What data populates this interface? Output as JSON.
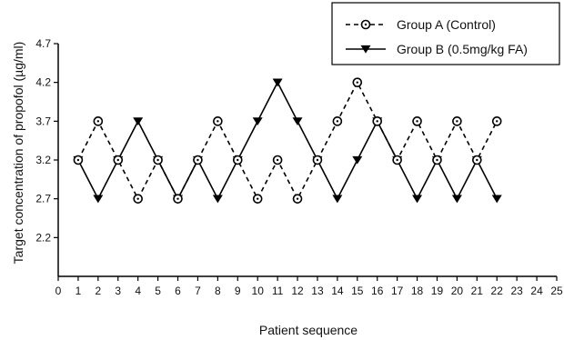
{
  "chart_data": {
    "type": "line",
    "title": "",
    "xlabel": "Patient sequence",
    "ylabel": "Target concentration of propofol (µg/ml)",
    "xlim": [
      0,
      25
    ],
    "ylim": [
      1.7,
      4.7
    ],
    "x_ticks": [
      "0",
      "1",
      "2",
      "3",
      "4",
      "5",
      "6",
      "7",
      "8",
      "9",
      "10",
      "11",
      "12",
      "13",
      "14",
      "15",
      "16",
      "17",
      "18",
      "19",
      "20",
      "21",
      "22",
      "23",
      "24",
      "25"
    ],
    "y_ticks": [
      "2.2",
      "2.7",
      "3.2",
      "3.7",
      "4.2",
      "4.7"
    ],
    "grid": false,
    "legend_position": "top-right",
    "series": [
      {
        "name": "Group A (Control)",
        "line_style": "dashed",
        "marker": "circle-dot",
        "color": "#000000",
        "x": [
          1,
          2,
          3,
          4,
          5,
          6,
          7,
          8,
          9,
          10,
          11,
          12,
          13,
          14,
          15,
          16,
          17,
          18,
          19,
          20,
          21,
          22
        ],
        "values": [
          3.2,
          3.7,
          3.2,
          2.7,
          3.2,
          2.7,
          3.2,
          3.7,
          3.2,
          2.7,
          3.2,
          2.7,
          3.2,
          3.7,
          4.2,
          3.7,
          3.2,
          3.7,
          3.2,
          3.7,
          3.2,
          3.7
        ]
      },
      {
        "name": "Group B (0.5mg/kg FA)",
        "line_style": "solid",
        "marker": "triangle-down",
        "color": "#000000",
        "x": [
          1,
          2,
          3,
          4,
          5,
          6,
          7,
          8,
          9,
          10,
          11,
          12,
          13,
          14,
          15,
          16,
          17,
          18,
          19,
          20,
          21,
          22
        ],
        "values": [
          3.2,
          2.7,
          3.2,
          3.7,
          3.2,
          2.7,
          3.2,
          2.7,
          3.2,
          3.7,
          4.2,
          3.7,
          3.2,
          2.7,
          3.2,
          3.7,
          3.2,
          2.7,
          3.2,
          2.7,
          3.2,
          2.7
        ]
      }
    ]
  }
}
